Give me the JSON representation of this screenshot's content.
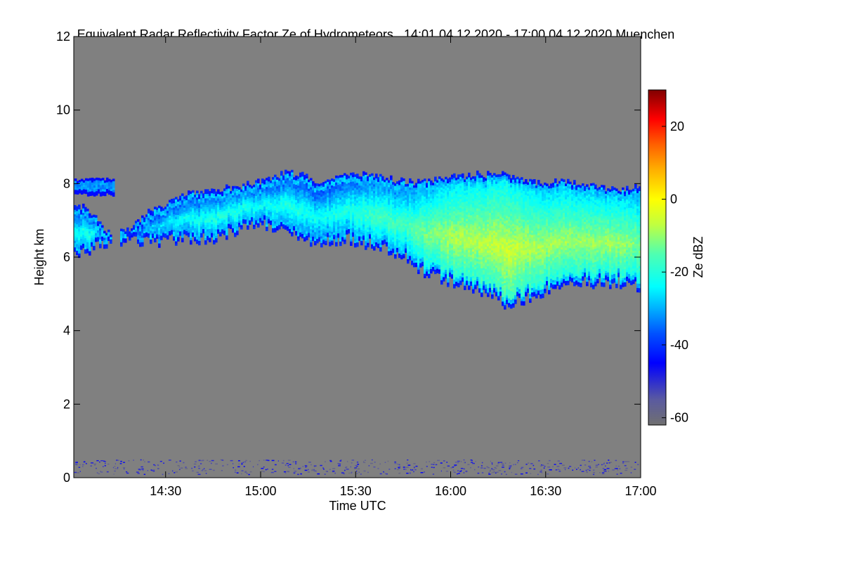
{
  "chart_data": {
    "type": "heatmap",
    "title": "Equivalent Radar Reflectivity Factor Ze of Hydrometeors",
    "time_range_label": "14:01 04.12.2020 - 17:00 04.12.2020",
    "location": "Muenchen",
    "xlabel": "Time UTC",
    "ylabel": "Height km",
    "xlim_hours": [
      14.0167,
      17.0
    ],
    "ylim": [
      0,
      12
    ],
    "x_ticks": [
      {
        "label": "14:30",
        "value": 14.5
      },
      {
        "label": "15:00",
        "value": 15.0
      },
      {
        "label": "15:30",
        "value": 15.5
      },
      {
        "label": "16:00",
        "value": 16.0
      },
      {
        "label": "16:30",
        "value": 16.5
      },
      {
        "label": "17:00",
        "value": 17.0
      }
    ],
    "y_ticks": [
      {
        "label": "0",
        "value": 0
      },
      {
        "label": "2",
        "value": 2
      },
      {
        "label": "4",
        "value": 4
      },
      {
        "label": "6",
        "value": 6
      },
      {
        "label": "8",
        "value": 8
      },
      {
        "label": "10",
        "value": 10
      },
      {
        "label": "12",
        "value": 12
      }
    ],
    "background_color": "#808080",
    "colorbar": {
      "label": "Ze dBZ",
      "range": [
        -62,
        30
      ],
      "ticks": [
        {
          "label": "20",
          "value": 20
        },
        {
          "label": "0",
          "value": 0
        },
        {
          "label": "-20",
          "value": -20
        },
        {
          "label": "-40",
          "value": -40
        },
        {
          "label": "-60",
          "value": -60
        }
      ],
      "stops": [
        {
          "value": -62,
          "color": "#707070"
        },
        {
          "value": -55,
          "color": "#5a5aa0"
        },
        {
          "value": -45,
          "color": "#0000ff"
        },
        {
          "value": -37,
          "color": "#0050ff"
        },
        {
          "value": -30,
          "color": "#00b0ff"
        },
        {
          "value": -24,
          "color": "#00ffff"
        },
        {
          "value": -15,
          "color": "#50ffb0"
        },
        {
          "value": -7,
          "color": "#c0ff40"
        },
        {
          "value": 0,
          "color": "#ffff00"
        },
        {
          "value": 8,
          "color": "#ffb000"
        },
        {
          "value": 15,
          "color": "#ff6000"
        },
        {
          "value": 22,
          "color": "#ff0000"
        },
        {
          "value": 30,
          "color": "#800000"
        }
      ]
    },
    "cloud_layer": [
      {
        "time": 14.02,
        "bottom": 6.1,
        "top": 7.4,
        "peak_dbz": -22
      },
      {
        "time": 14.1,
        "bottom": 6.2,
        "top": 7.2,
        "peak_dbz": -20
      },
      {
        "time": 14.18,
        "bottom": 6.4,
        "top": 6.7,
        "peak_dbz": -35
      },
      {
        "time": 14.3,
        "bottom": 6.4,
        "top": 6.7,
        "peak_dbz": -40
      },
      {
        "time": 14.4,
        "bottom": 6.4,
        "top": 7.2,
        "peak_dbz": -28
      },
      {
        "time": 14.6,
        "bottom": 6.5,
        "top": 7.7,
        "peak_dbz": -22
      },
      {
        "time": 14.75,
        "bottom": 6.5,
        "top": 7.8,
        "peak_dbz": -20
      },
      {
        "time": 14.9,
        "bottom": 6.8,
        "top": 7.9,
        "peak_dbz": -20
      },
      {
        "time": 15.0,
        "bottom": 6.9,
        "top": 8.0,
        "peak_dbz": -22
      },
      {
        "time": 15.15,
        "bottom": 6.6,
        "top": 8.3,
        "peak_dbz": -20
      },
      {
        "time": 15.3,
        "bottom": 6.4,
        "top": 8.0,
        "peak_dbz": -22
      },
      {
        "time": 15.45,
        "bottom": 6.5,
        "top": 8.2,
        "peak_dbz": -20
      },
      {
        "time": 15.6,
        "bottom": 6.3,
        "top": 8.2,
        "peak_dbz": -16
      },
      {
        "time": 15.75,
        "bottom": 6.0,
        "top": 8.0,
        "peak_dbz": -16
      },
      {
        "time": 15.85,
        "bottom": 5.6,
        "top": 8.0,
        "peak_dbz": -12
      },
      {
        "time": 16.0,
        "bottom": 5.3,
        "top": 8.2,
        "peak_dbz": -8
      },
      {
        "time": 16.15,
        "bottom": 5.1,
        "top": 8.2,
        "peak_dbz": -7
      },
      {
        "time": 16.3,
        "bottom": 4.7,
        "top": 8.2,
        "peak_dbz": -5
      },
      {
        "time": 16.45,
        "bottom": 5.0,
        "top": 8.0,
        "peak_dbz": -8
      },
      {
        "time": 16.6,
        "bottom": 5.3,
        "top": 8.0,
        "peak_dbz": -9
      },
      {
        "time": 16.75,
        "bottom": 5.3,
        "top": 7.9,
        "peak_dbz": -9
      },
      {
        "time": 16.9,
        "bottom": 5.3,
        "top": 7.8,
        "peak_dbz": -9
      },
      {
        "time": 17.0,
        "bottom": 5.2,
        "top": 7.9,
        "peak_dbz": -12
      }
    ],
    "upper_patch": {
      "time_start": 14.02,
      "time_end": 14.23,
      "bottom": 7.7,
      "top": 8.1,
      "peak_dbz": -32
    },
    "low_clutter": {
      "bottom": 0.1,
      "top": 0.5,
      "peak_dbz": -45
    }
  }
}
